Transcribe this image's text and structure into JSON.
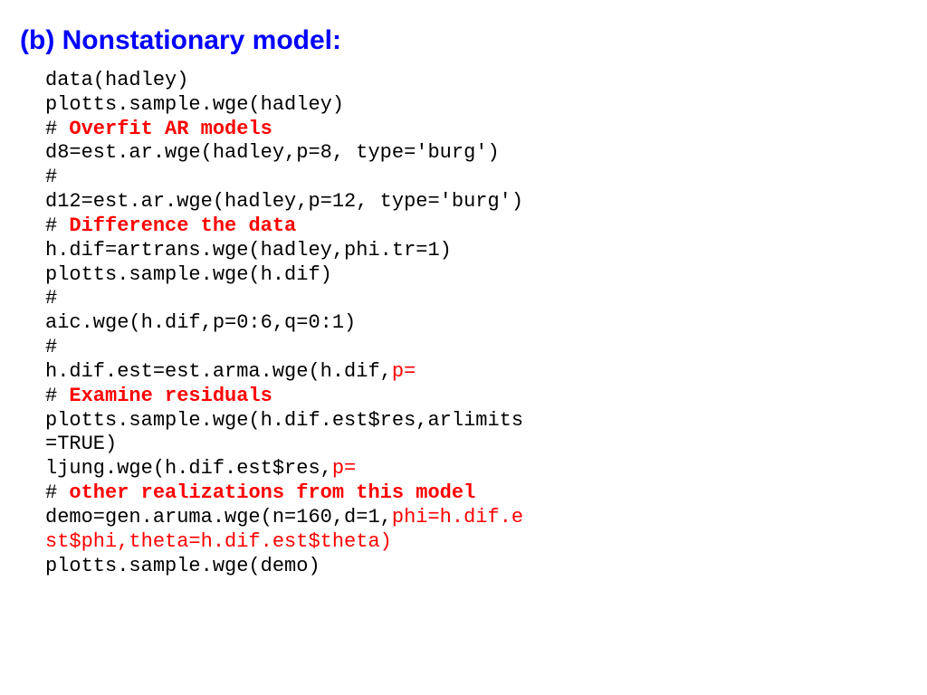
{
  "heading": "(b) Nonstationary model:",
  "colors": {
    "heading": "#0000ff",
    "code_default": "#000000",
    "highlight": "#ff0000",
    "background": "#ffffff"
  },
  "fonts": {
    "heading_family": "Arial",
    "heading_size_pt": 22,
    "heading_weight": "bold",
    "code_family": "Courier New",
    "code_size_pt": 16
  },
  "lines": [
    {
      "segments": [
        {
          "text": "data(hadley)",
          "style": "plain"
        }
      ]
    },
    {
      "segments": [
        {
          "text": "plotts.sample.wge(hadley)",
          "style": "plain"
        }
      ]
    },
    {
      "segments": [
        {
          "text": "# ",
          "style": "plain"
        },
        {
          "text": "Overfit AR models",
          "style": "red-bold"
        }
      ]
    },
    {
      "segments": [
        {
          "text": "d8=est.ar.wge(hadley,p=8, type='burg')",
          "style": "plain"
        }
      ]
    },
    {
      "segments": [
        {
          "text": "#",
          "style": "plain"
        }
      ]
    },
    {
      "segments": [
        {
          "text": "d12=est.ar.wge(hadley,p=12, type='burg')",
          "style": "plain"
        }
      ]
    },
    {
      "segments": [
        {
          "text": "# ",
          "style": "plain"
        },
        {
          "text": "Difference the data",
          "style": "red-bold"
        }
      ]
    },
    {
      "segments": [
        {
          "text": "h.dif=artrans.wge(hadley,phi.tr=1)",
          "style": "plain"
        }
      ]
    },
    {
      "segments": [
        {
          "text": "plotts.sample.wge(h.dif)",
          "style": "plain"
        }
      ]
    },
    {
      "segments": [
        {
          "text": "#",
          "style": "plain"
        }
      ]
    },
    {
      "segments": [
        {
          "text": "aic.wge(h.dif,p=0:6,q=0:1)",
          "style": "plain"
        }
      ]
    },
    {
      "segments": [
        {
          "text": "#",
          "style": "plain"
        }
      ]
    },
    {
      "segments": [
        {
          "text": "h.dif.est=est.arma.wge(h.dif,",
          "style": "plain"
        },
        {
          "text": "p=",
          "style": "red"
        }
      ]
    },
    {
      "segments": [
        {
          "text": "# ",
          "style": "plain"
        },
        {
          "text": "Examine residuals",
          "style": "red-bold"
        }
      ]
    },
    {
      "segments": [
        {
          "text": "plotts.sample.wge(h.dif.est$res,arlimits",
          "style": "plain"
        }
      ]
    },
    {
      "segments": [
        {
          "text": "=TRUE)",
          "style": "plain"
        }
      ]
    },
    {
      "segments": [
        {
          "text": "ljung.wge(h.dif.est$res,",
          "style": "plain"
        },
        {
          "text": "p=",
          "style": "red"
        }
      ]
    },
    {
      "segments": [
        {
          "text": "# ",
          "style": "plain"
        },
        {
          "text": "other realizations from this model",
          "style": "red-bold"
        }
      ]
    },
    {
      "segments": [
        {
          "text": "demo=gen.aruma.wge(n=160,d=1,",
          "style": "plain"
        },
        {
          "text": "phi=h.dif.e",
          "style": "red"
        }
      ]
    },
    {
      "segments": [
        {
          "text": "st$phi,theta=h.dif.est$theta)",
          "style": "red"
        }
      ]
    },
    {
      "segments": [
        {
          "text": "plotts.sample.wge(demo)",
          "style": "plain"
        }
      ]
    }
  ]
}
